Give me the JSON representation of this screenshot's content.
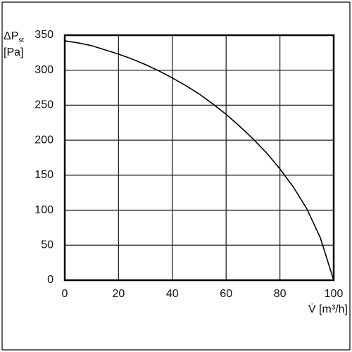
{
  "chart_data": {
    "type": "line",
    "ylabel": "ΔP",
    "ylabel_sub": "st",
    "ylabel_unit": "[Pa]",
    "xlabel": "V̇ [m³/h]",
    "x": [
      0,
      5,
      10,
      15,
      20,
      25,
      30,
      35,
      40,
      45,
      50,
      55,
      60,
      65,
      70,
      75,
      80,
      85,
      90,
      95,
      100
    ],
    "values": [
      342,
      339,
      335,
      329,
      323,
      316,
      308,
      299,
      289,
      278,
      266,
      252,
      237,
      220,
      202,
      182,
      159,
      133,
      102,
      61,
      0
    ],
    "color": "#000000",
    "xlim": [
      0,
      100
    ],
    "xticks": [
      0,
      20,
      40,
      60,
      80,
      100
    ],
    "ylim": [
      0,
      350
    ],
    "yticks": [
      0,
      50,
      100,
      150,
      200,
      250,
      300,
      350
    ],
    "grid": true
  }
}
